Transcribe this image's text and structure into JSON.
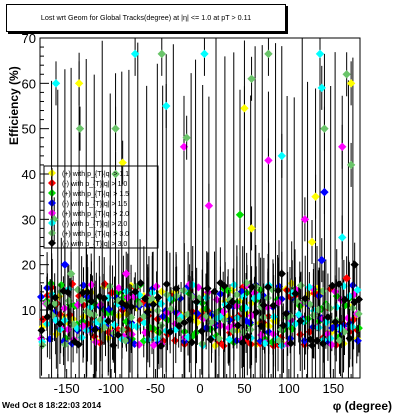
{
  "title": "Lost wrt Geom for Global Tracks(degree) at |η| <= 1.0 at pT > 0.11",
  "footer_timestamp": "Wed Oct  8 18:22:03 2014",
  "chart_data": {
    "type": "scatter",
    "title": "Lost wrt Geom for Global Tracks(degree) at |η| <= 1.0 at pT > 0.11",
    "xlabel": "φ (degree)",
    "ylabel": "Efficiency (%)",
    "xlim": [
      -180,
      180
    ],
    "ylim": [
      -5,
      70
    ],
    "x_ticks": [
      -150,
      -100,
      -50,
      0,
      50,
      100,
      150
    ],
    "y_ticks": [
      10,
      20,
      30,
      40,
      50,
      60,
      70
    ],
    "grid": false,
    "legend_placement": "left-middle",
    "legend": [
      {
        "label": "(+) with p_{T}|q| > 1.1",
        "color": "#ffff00"
      },
      {
        "label": "(-) with p_{T}|q| > 1.0",
        "color": "#ff0000"
      },
      {
        "label": "(+) with p_{T}|q| > 1.5",
        "color": "#00dd00"
      },
      {
        "label": "(-) with p_{T}|q| > 1.5",
        "color": "#0000ff"
      },
      {
        "label": "(+) with p_{T}|q| > 2.0",
        "color": "#ff00ff"
      },
      {
        "label": "(-) with p_{T}|q| > 2.0",
        "color": "#00ffff"
      },
      {
        "label": "(+) with p_{T}|q| > 3.0",
        "color": "#6ac46a"
      },
      {
        "label": "(-) with p_{T}|q| > 3.0",
        "color": "#000000"
      }
    ],
    "highlight_points": [
      {
        "x": -162,
        "y": 60,
        "color": "#00ffff"
      },
      {
        "x": -136,
        "y": 60,
        "color": "#ffff00"
      },
      {
        "x": -135,
        "y": 50,
        "color": "#6ac46a"
      },
      {
        "x": -95,
        "y": 50,
        "color": "#6ac46a"
      },
      {
        "x": -73,
        "y": 66.5,
        "color": "#00ffff"
      },
      {
        "x": -43,
        "y": 66.5,
        "color": "#6ac46a"
      },
      {
        "x": -38,
        "y": 55,
        "color": "#00ffff"
      },
      {
        "x": 5,
        "y": 66.5,
        "color": "#00ffff"
      },
      {
        "x": 50,
        "y": 54.5,
        "color": "#ffff00"
      },
      {
        "x": 58,
        "y": 61,
        "color": "#6ac46a"
      },
      {
        "x": 77,
        "y": 66.5,
        "color": "#6ac46a"
      },
      {
        "x": 135,
        "y": 66.5,
        "color": "#00ffff"
      },
      {
        "x": 137,
        "y": 59,
        "color": "#00ffff"
      },
      {
        "x": 140,
        "y": 50,
        "color": "#6ac46a"
      },
      {
        "x": 165,
        "y": 62,
        "color": "#6ac46a"
      },
      {
        "x": 170,
        "y": 60,
        "color": "#ffff00"
      },
      {
        "x": -18,
        "y": 46,
        "color": "#ff00ff"
      },
      {
        "x": -15,
        "y": 48,
        "color": "#6ac46a"
      },
      {
        "x": 160,
        "y": 46,
        "color": "#ff00ff"
      },
      {
        "x": 170,
        "y": 42,
        "color": "#6ac46a"
      },
      {
        "x": 92,
        "y": 44,
        "color": "#00ffff"
      },
      {
        "x": 77,
        "y": 43,
        "color": "#ff00ff"
      },
      {
        "x": -95,
        "y": 40,
        "color": "#6ac46a"
      },
      {
        "x": -87,
        "y": 42.5,
        "color": "#ffff00"
      },
      {
        "x": 140,
        "y": 36,
        "color": "#0000ff"
      },
      {
        "x": 130,
        "y": 35,
        "color": "#ffff00"
      },
      {
        "x": 45,
        "y": 31,
        "color": "#00dd00"
      },
      {
        "x": 10,
        "y": 33,
        "color": "#ff00ff"
      },
      {
        "x": -164,
        "y": 30,
        "color": "#6ac46a"
      },
      {
        "x": 58,
        "y": 28,
        "color": "#ffff00"
      },
      {
        "x": 118,
        "y": 30,
        "color": "#ff00ff"
      },
      {
        "x": 126,
        "y": 25,
        "color": "#ffff00"
      },
      {
        "x": 160,
        "y": 26,
        "color": "#00ffff"
      },
      {
        "x": 137,
        "y": 21,
        "color": "#0000ff"
      },
      {
        "x": -152,
        "y": 20,
        "color": "#0000ff"
      },
      {
        "x": -145,
        "y": 18,
        "color": "#6ac46a"
      },
      {
        "x": -83,
        "y": 18,
        "color": "#ff00ff"
      },
      {
        "x": 92,
        "y": 18,
        "color": "#000000"
      },
      {
        "x": 165,
        "y": 17,
        "color": "#ff0000"
      },
      {
        "x": 174,
        "y": 20,
        "color": "#000000"
      }
    ],
    "bulk_band": {
      "y_min": 2,
      "y_max": 16,
      "series_count": 8,
      "points_per_series": 72
    }
  }
}
